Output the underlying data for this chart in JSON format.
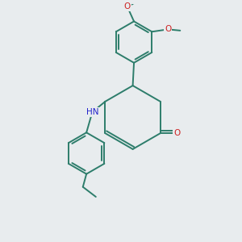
{
  "bg_color": "#e8ecee",
  "bond_color": "#2d7d6b",
  "nitrogen_color": "#2222cc",
  "oxygen_color": "#cc2222",
  "lw": 1.4,
  "dbo": 0.11,
  "xlim": [
    0,
    10
  ],
  "ylim": [
    0,
    10
  ]
}
